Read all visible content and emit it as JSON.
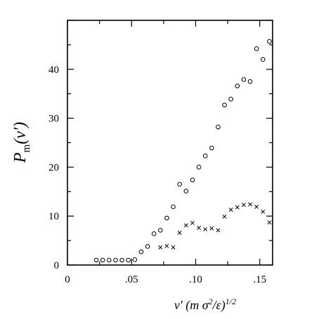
{
  "chart_data": {
    "type": "scatter",
    "title": "",
    "xlabel": "ν′ (m σ²/ε)^{1/2}",
    "ylabel": "P_m(ν′)",
    "xlim": [
      0,
      0.16
    ],
    "ylim": [
      0,
      50
    ],
    "grid": false,
    "x_ticks": [
      0,
      0.05,
      0.1,
      0.15
    ],
    "x_tick_labels": [
      "0",
      ".05",
      ".10",
      ".15"
    ],
    "y_ticks": [
      0,
      10,
      20,
      30,
      40
    ],
    "y_tick_labels": [
      "0",
      "10",
      "20",
      "30",
      "40"
    ],
    "series": [
      {
        "marker": "circle",
        "x": [
          0.0225,
          0.0275,
          0.0325,
          0.0375,
          0.0425,
          0.0475,
          0.0525,
          0.0575,
          0.0625,
          0.0675,
          0.0725,
          0.0775,
          0.0825,
          0.0875,
          0.0925,
          0.0975,
          0.1025,
          0.1075,
          0.1125,
          0.1175,
          0.1225,
          0.1275,
          0.1325,
          0.1375,
          0.1425,
          0.1475,
          0.1525,
          0.1575
        ],
        "y": [
          1.0,
          1.0,
          1.0,
          1.0,
          1.0,
          1.0,
          1.1,
          2.7,
          3.8,
          6.4,
          7.1,
          9.6,
          11.9,
          16.5,
          15.1,
          17.4,
          20.0,
          22.3,
          23.9,
          28.2,
          32.7,
          33.9,
          36.6,
          37.9,
          37.5,
          44.2,
          42.0,
          45.7
        ]
      },
      {
        "marker": "cross",
        "x": [
          0.0725,
          0.0775,
          0.0825,
          0.0875,
          0.0925,
          0.0975,
          0.1025,
          0.1075,
          0.1125,
          0.1175,
          0.1225,
          0.1275,
          0.1325,
          0.1375,
          0.1425,
          0.1475,
          0.1525,
          0.1575
        ],
        "y": [
          3.6,
          3.9,
          3.6,
          6.6,
          8.1,
          8.6,
          7.6,
          7.3,
          7.5,
          7.1,
          9.9,
          11.3,
          11.8,
          12.3,
          12.4,
          11.9,
          10.9,
          8.7
        ]
      }
    ]
  }
}
